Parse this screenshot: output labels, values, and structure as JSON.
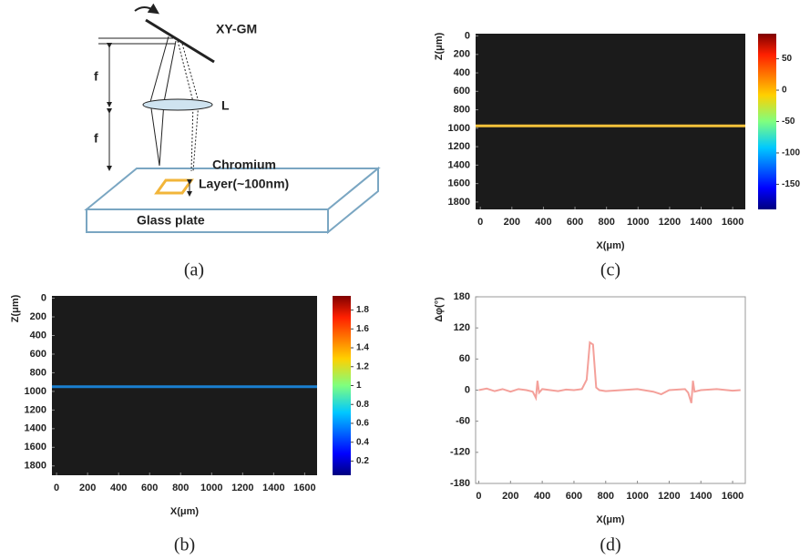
{
  "diagram": {
    "mirror_label": "XY-GM",
    "focal_upper": "f",
    "focal_lower": "f",
    "lens_label": "L",
    "layer_label_1": "Chromium",
    "layer_label_2": "Layer(~100nm)",
    "plate_label": "Glass plate",
    "caption": "(a)"
  },
  "chart_data": [
    {
      "type": "heatmap",
      "caption": "(c)",
      "xlabel": "X(μm)",
      "ylabel": "Z(μm)",
      "xlim": [
        -30,
        1680
      ],
      "ylim": [
        -25,
        1880
      ],
      "xticks": [
        0,
        200,
        400,
        600,
        800,
        1000,
        1200,
        1400,
        1600
      ],
      "yticks": [
        0,
        200,
        400,
        600,
        800,
        1000,
        1200,
        1400,
        1600,
        1800
      ],
      "background": "#1b1b1b",
      "band_z": 975,
      "band_color": "#f5c23a",
      "colorbar": {
        "lim": [
          -190,
          90
        ],
        "ticks": [
          50,
          0,
          -50,
          -100,
          -150
        ]
      }
    },
    {
      "type": "heatmap",
      "caption": "(b)",
      "xlabel": "X(μm)",
      "ylabel": "Z(μm)",
      "xlim": [
        -30,
        1680
      ],
      "ylim": [
        -25,
        1900
      ],
      "xticks": [
        0,
        200,
        400,
        600,
        800,
        1000,
        1200,
        1400,
        1600
      ],
      "yticks": [
        0,
        200,
        400,
        600,
        800,
        1000,
        1200,
        1400,
        1600,
        1800
      ],
      "background": "#1b1b1b",
      "band_z": 950,
      "band_color": "#1a7fd0",
      "colorbar": {
        "lim": [
          0.05,
          1.95
        ],
        "ticks": [
          1.8,
          1.6,
          1.4,
          1.2,
          1,
          0.8,
          0.6,
          0.4,
          0.2
        ]
      }
    },
    {
      "type": "line",
      "caption": "(d)",
      "xlabel": "X(μm)",
      "ylabel": "Δφ(°)",
      "xlim": [
        -20,
        1680
      ],
      "ylim": [
        -180,
        180
      ],
      "xticks": [
        0,
        200,
        400,
        600,
        800,
        1000,
        1200,
        1400,
        1600
      ],
      "yticks": [
        180,
        120,
        60,
        0,
        -60,
        -120,
        -180
      ],
      "x": [
        0,
        50,
        100,
        150,
        200,
        250,
        300,
        340,
        360,
        370,
        380,
        400,
        450,
        500,
        550,
        600,
        650,
        680,
        700,
        720,
        740,
        760,
        800,
        900,
        1000,
        1100,
        1150,
        1200,
        1300,
        1320,
        1340,
        1350,
        1360,
        1400,
        1500,
        1600,
        1650
      ],
      "series": [
        {
          "color": "#f4a09a",
          "values": [
            0,
            3,
            -2,
            2,
            -3,
            2,
            0,
            -3,
            -15,
            18,
            -5,
            2,
            0,
            -2,
            1,
            0,
            2,
            20,
            92,
            88,
            5,
            0,
            -2,
            0,
            2,
            -3,
            -8,
            0,
            2,
            -5,
            -25,
            18,
            -3,
            0,
            2,
            -1,
            0
          ]
        }
      ]
    }
  ]
}
